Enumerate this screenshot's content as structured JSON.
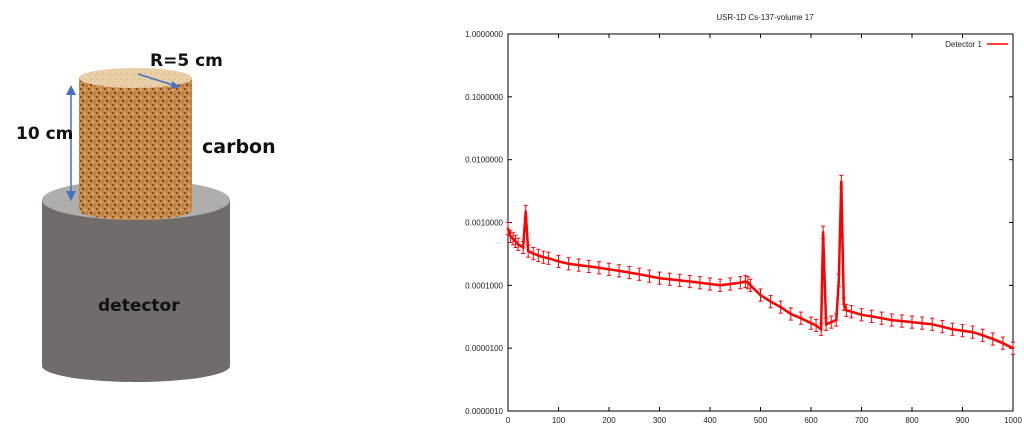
{
  "diagram": {
    "radius_label": "R=5 cm",
    "height_label": "10 cm",
    "material_label": "carbon",
    "detector_label": "detector"
  },
  "chart_data": {
    "type": "line",
    "title": "USR-1D Cs-137-volume 17",
    "xlabel": "",
    "ylabel": "",
    "xlim": [
      0,
      1000
    ],
    "ylim": [
      1e-06,
      1.0
    ],
    "yscale": "log",
    "x_ticks": [
      "0",
      "100",
      "200",
      "300",
      "400",
      "500",
      "600",
      "700",
      "800",
      "900",
      "1000"
    ],
    "y_ticks": [
      "0.0000010",
      "0.0000100",
      "0.0001000",
      "0.0010000",
      "0.0100000",
      "0.1000000",
      "1.0000000"
    ],
    "legend_position": "top-right",
    "grid": false,
    "series": [
      {
        "name": "Detector 1",
        "color": "#ff0000",
        "error_bars": true,
        "x": [
          0,
          5,
          10,
          15,
          20,
          30,
          35,
          40,
          50,
          60,
          70,
          80,
          100,
          120,
          140,
          160,
          180,
          200,
          220,
          240,
          260,
          280,
          300,
          320,
          340,
          360,
          380,
          400,
          420,
          440,
          460,
          470,
          475,
          480,
          500,
          520,
          540,
          560,
          580,
          600,
          610,
          620,
          624,
          630,
          640,
          650,
          655,
          660,
          665,
          670,
          680,
          700,
          720,
          740,
          760,
          780,
          800,
          820,
          840,
          860,
          880,
          900,
          920,
          940,
          960,
          980,
          1000
        ],
        "y": [
          0.0008,
          0.0006,
          0.00055,
          0.0005,
          0.00045,
          0.0004,
          0.0015,
          0.00035,
          0.00032,
          0.0003,
          0.00028,
          0.00027,
          0.00024,
          0.00022,
          0.00021,
          0.0002,
          0.00019,
          0.00018,
          0.00017,
          0.00016,
          0.00015,
          0.00014,
          0.00013,
          0.000125,
          0.00012,
          0.000115,
          0.00011,
          0.000105,
          0.0001,
          0.000105,
          0.00011,
          0.000115,
          0.00011,
          0.0001,
          7e-05,
          5.5e-05,
          4.5e-05,
          3.5e-05,
          3e-05,
          2.5e-05,
          2.3e-05,
          2e-05,
          0.0007,
          2.4e-05,
          2.6e-05,
          2.8e-05,
          0.00012,
          0.0045,
          5e-05,
          4e-05,
          3.8e-05,
          3.4e-05,
          3.2e-05,
          3e-05,
          2.8e-05,
          2.7e-05,
          2.6e-05,
          2.5e-05,
          2.4e-05,
          2.2e-05,
          2e-05,
          1.9e-05,
          1.8e-05,
          1.6e-05,
          1.4e-05,
          1.2e-05,
          1e-05
        ]
      }
    ]
  }
}
